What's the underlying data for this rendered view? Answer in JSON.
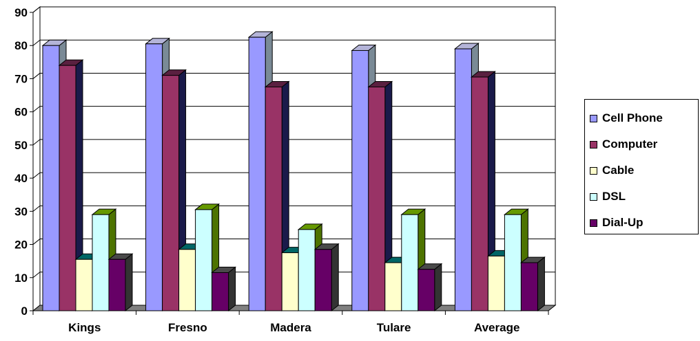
{
  "chart_data": {
    "type": "bar",
    "categories": [
      "Kings",
      "Fresno",
      "Madera",
      "Tulare",
      "Average"
    ],
    "series": [
      {
        "name": "Cell Phone",
        "values": [
          80,
          80.5,
          82.5,
          78.5,
          79
        ],
        "color": "#9999ff",
        "top_color": "#b4b4d8",
        "side_color": "#7a8a96"
      },
      {
        "name": "Computer",
        "values": [
          74,
          71,
          67.5,
          67.5,
          70.5
        ],
        "color": "#993366",
        "top_color": "#5a2040",
        "side_color": "#1a1a4a"
      },
      {
        "name": "Cable",
        "values": [
          15.5,
          18.5,
          17.5,
          14.5,
          16.5
        ],
        "color": "#ffffcc",
        "top_color": "#006666",
        "side_color": "#004c4c"
      },
      {
        "name": "DSL",
        "values": [
          29,
          30.5,
          24.5,
          29,
          29
        ],
        "color": "#ccffff",
        "top_color": "#669900",
        "side_color": "#4d7300"
      },
      {
        "name": "Dial-Up",
        "values": [
          15.5,
          11.5,
          18.5,
          12.5,
          14.5
        ],
        "color": "#660066",
        "top_color": "#4a4a4a",
        "side_color": "#333333"
      }
    ],
    "ylim": [
      0,
      90
    ],
    "yticks": [
      "0",
      "10",
      "20",
      "30",
      "40",
      "50",
      "60",
      "70",
      "80",
      "90"
    ],
    "grid": true,
    "legend_position": "right"
  }
}
